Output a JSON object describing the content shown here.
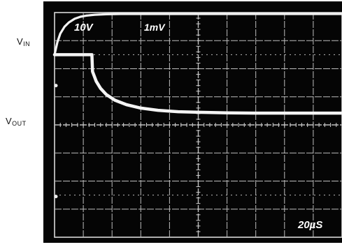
{
  "chart_data": {
    "type": "line",
    "title": "",
    "xlabel": "",
    "ylabel": "",
    "grid": true,
    "divisions": {
      "x": 10,
      "y": 8
    },
    "xlim": [
      0,
      10
    ],
    "ylim": [
      0,
      8
    ],
    "channel_labels": {
      "vin_main": "V",
      "vin_sub": "IN",
      "vout_main": "V",
      "vout_sub": "OUT"
    },
    "scale_labels": {
      "channel1": "10V",
      "channel2": "1mV",
      "timebase": "20µS"
    },
    "series": [
      {
        "x": [
          0.0,
          0.1,
          0.2,
          0.35,
          0.5,
          0.7,
          0.9,
          1.1,
          1.4,
          1.8,
          2.3,
          3.0,
          4.0,
          5.0,
          6.0,
          7.0,
          8.0,
          9.0,
          10.0
        ],
        "values": [
          6.5,
          6.95,
          7.25,
          7.5,
          7.65,
          7.78,
          7.85,
          7.89,
          7.92,
          7.94,
          7.95,
          7.95,
          7.95,
          7.95,
          7.95,
          7.95,
          7.95,
          7.95,
          7.95
        ]
      },
      {
        "x": [
          0.0,
          0.8,
          1.3,
          1.32,
          1.45,
          1.6,
          1.8,
          2.1,
          2.5,
          3.0,
          3.6,
          4.3,
          5.0,
          6.0,
          7.0,
          8.0,
          9.0,
          10.0
        ],
        "values": [
          6.5,
          6.5,
          6.5,
          5.9,
          5.55,
          5.3,
          5.08,
          4.88,
          4.72,
          4.6,
          4.52,
          4.47,
          4.45,
          4.43,
          4.42,
          4.42,
          4.42,
          4.42
        ]
      }
    ]
  }
}
